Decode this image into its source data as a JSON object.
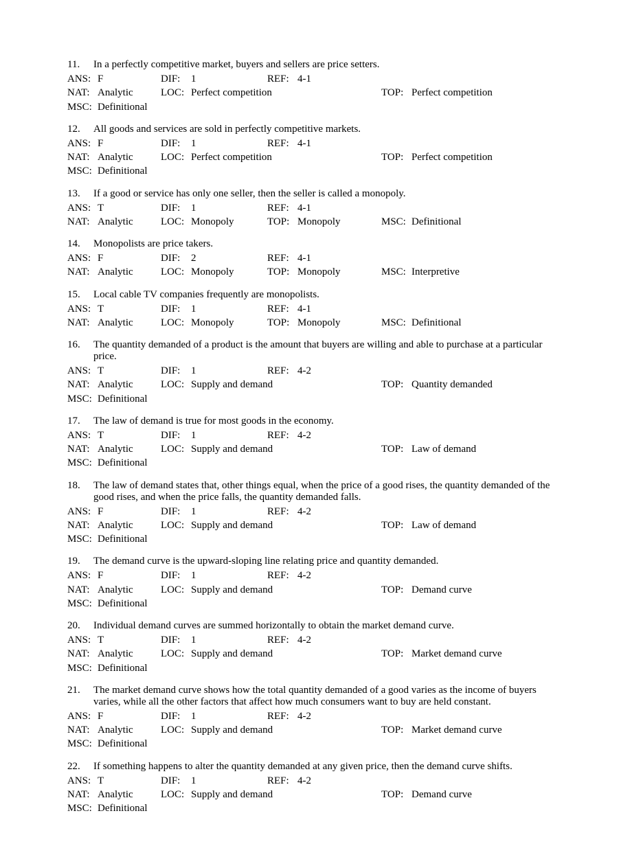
{
  "labels": {
    "ans": "ANS:",
    "dif": "DIF:",
    "ref": "REF:",
    "nat": "NAT:",
    "loc": "LOC:",
    "top": "TOP:",
    "msc": "MSC:"
  },
  "questions": [
    {
      "num": "11.",
      "text": "In a perfectly competitive market, buyers and sellers are price setters.",
      "ans": "F",
      "dif": "1",
      "ref": "4-1",
      "nat": "Analytic",
      "loc": "Perfect competition",
      "top": "Perfect competition",
      "msc": "Definitional",
      "layout": "wide"
    },
    {
      "num": "12.",
      "text": "All goods and services are sold in perfectly competitive markets.",
      "ans": "F",
      "dif": "1",
      "ref": "4-1",
      "nat": "Analytic",
      "loc": "Perfect competition",
      "top": "Perfect competition",
      "msc": "Definitional",
      "layout": "wide"
    },
    {
      "num": "13.",
      "text": "If a good or service has only one seller, then the seller is called a monopoly.",
      "ans": "T",
      "dif": "1",
      "ref": "4-1",
      "nat": "Analytic",
      "loc": "Monopoly",
      "top": "Monopoly",
      "msc": "Definitional",
      "layout": "narrow"
    },
    {
      "num": "14.",
      "text": "Monopolists are price takers.",
      "ans": "F",
      "dif": "2",
      "ref": "4-1",
      "nat": "Analytic",
      "loc": "Monopoly",
      "top": "Monopoly",
      "msc": "Interpretive",
      "layout": "narrow"
    },
    {
      "num": "15.",
      "text": "Local cable TV companies frequently are monopolists.",
      "ans": "T",
      "dif": "1",
      "ref": "4-1",
      "nat": "Analytic",
      "loc": "Monopoly",
      "top": "Monopoly",
      "msc": "Definitional",
      "layout": "narrow"
    },
    {
      "num": "16.",
      "text": "The quantity demanded of a product is the amount that buyers are willing and able to purchase at a particular price.",
      "ans": "T",
      "dif": "1",
      "ref": "4-2",
      "nat": "Analytic",
      "loc": "Supply and demand",
      "top": "Quantity demanded",
      "msc": "Definitional",
      "layout": "wide"
    },
    {
      "num": "17.",
      "text": "The law of demand is true for most goods in the economy.",
      "ans": "T",
      "dif": "1",
      "ref": "4-2",
      "nat": "Analytic",
      "loc": "Supply and demand",
      "top": "Law of demand",
      "msc": "Definitional",
      "layout": "wide"
    },
    {
      "num": "18.",
      "text": "The law of demand states that, other things equal, when the price of a good rises, the quantity demanded of the good rises, and when the price falls, the quantity demanded falls.",
      "ans": "F",
      "dif": "1",
      "ref": "4-2",
      "nat": "Analytic",
      "loc": "Supply and demand",
      "top": "Law of demand",
      "msc": "Definitional",
      "layout": "wide"
    },
    {
      "num": "19.",
      "text": "The demand curve is the upward-sloping line relating price and quantity demanded.",
      "ans": "F",
      "dif": "1",
      "ref": "4-2",
      "nat": "Analytic",
      "loc": "Supply and demand",
      "top": "Demand curve",
      "msc": "Definitional",
      "layout": "wide"
    },
    {
      "num": "20.",
      "text": "Individual demand curves are summed horizontally to obtain the market demand curve.",
      "ans": "T",
      "dif": "1",
      "ref": "4-2",
      "nat": "Analytic",
      "loc": "Supply and demand",
      "top": "Market demand curve",
      "msc": "Definitional",
      "layout": "wide"
    },
    {
      "num": "21.",
      "text": "The market demand curve shows how the total quantity demanded of a good varies as the income of buyers varies, while all the other factors that affect how much consumers want to buy are held constant.",
      "ans": "F",
      "dif": "1",
      "ref": "4-2",
      "nat": "Analytic",
      "loc": "Supply and demand",
      "top": "Market demand curve",
      "msc": "Definitional",
      "layout": "wide"
    },
    {
      "num": "22.",
      "text": "If something happens to alter the quantity demanded at any given price, then the demand curve shifts.",
      "ans": "T",
      "dif": "1",
      "ref": "4-2",
      "nat": "Analytic",
      "loc": "Supply and demand",
      "top": "Demand curve",
      "msc": "Definitional",
      "layout": "wide"
    }
  ]
}
